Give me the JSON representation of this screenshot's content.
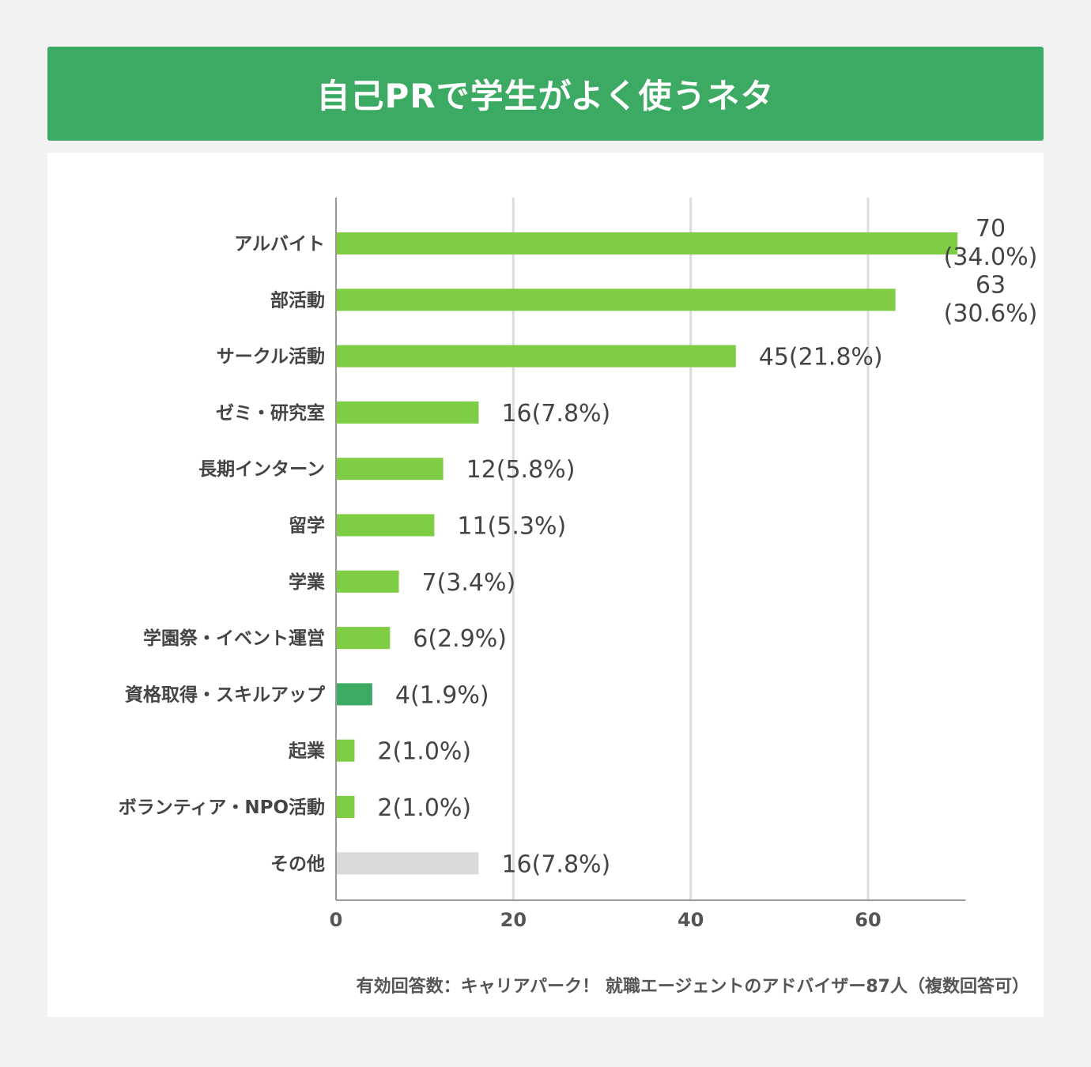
{
  "chart_data": {
    "type": "bar",
    "orientation": "horizontal",
    "title": "自己PRで学生がよく使うネタ",
    "categories": [
      "アルバイト",
      "部活動",
      "サークル活動",
      "ゼミ・研究室",
      "長期インターン",
      "留学",
      "学業",
      "学園祭・イベント運営",
      "資格取得・スキルアップ",
      "起業",
      "ボランティア・NPO活動",
      "その他"
    ],
    "values": [
      70,
      63,
      45,
      16,
      12,
      11,
      7,
      6,
      4,
      2,
      2,
      16
    ],
    "percent_labels": [
      "(34.0%)",
      "(30.6%)",
      "(21.8%)",
      "(7.8%)",
      "(5.8%)",
      "(5.3%)",
      "(3.4%)",
      "(2.9%)",
      "(1.9%)",
      "(1.0%)",
      "(1.0%)",
      "(7.8%)"
    ],
    "bar_colors": [
      "#7fcc45",
      "#7fcc45",
      "#7fcc45",
      "#7fcc45",
      "#7fcc45",
      "#7fcc45",
      "#7fcc45",
      "#7fcc45",
      "#3daa63",
      "#7fcc45",
      "#7fcc45",
      "#d9d9d9"
    ],
    "xlim": [
      0,
      71
    ],
    "xticks": [
      "0",
      "20",
      "40",
      "60"
    ],
    "xtick_values": [
      0,
      20,
      40,
      60
    ],
    "grid": true,
    "xlabel": "",
    "ylabel": ""
  },
  "colors": {
    "header": "#3daa63",
    "bar": "#7fcc45",
    "highlight": "#3daa63",
    "other": "#d9d9d9"
  },
  "footnote": "有効回答数：キャリアパーク！ 就職エージェントのアドバイザー87人（複数回答可）"
}
